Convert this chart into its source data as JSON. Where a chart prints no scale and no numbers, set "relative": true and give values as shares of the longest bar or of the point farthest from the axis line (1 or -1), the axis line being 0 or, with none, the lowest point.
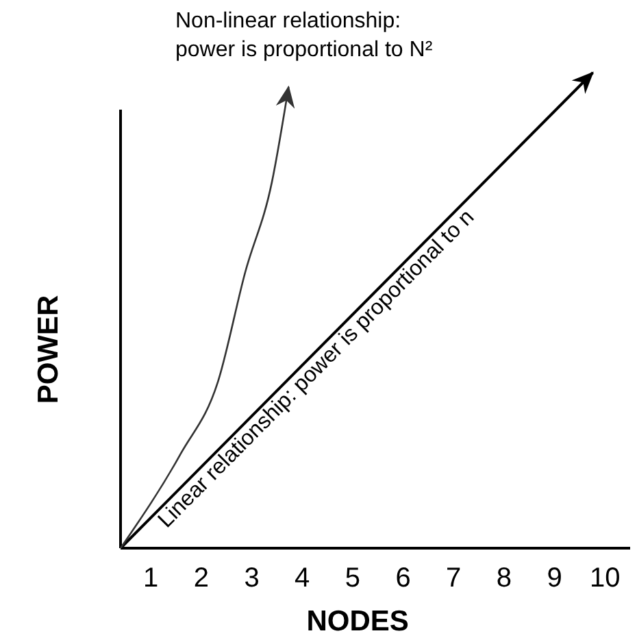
{
  "chart_data": {
    "type": "line",
    "relative": true,
    "xlabel": "NODES",
    "ylabel": "POWER",
    "xlim": [
      0.4,
      10.5
    ],
    "xticks": [
      1,
      2,
      3,
      4,
      5,
      6,
      7,
      8,
      9,
      10
    ],
    "series": [
      {
        "color": "#000000",
        "x": [
          0.4,
          9.76
        ],
        "values": [
          0,
          1
        ]
      },
      {
        "color": "#333333",
        "x": [
          0.4,
          1.6,
          2.33,
          2.87,
          3.4,
          3.73
        ],
        "values": [
          0,
          0.2,
          0.35,
          0.58,
          0.77,
          0.97
        ]
      }
    ],
    "annotations": [
      "Non-linear relationship:\npower is proportional to N²",
      "Linear relationship: power is proportional to n"
    ],
    "grid": false,
    "marker": "none",
    "line_style": "solid"
  }
}
